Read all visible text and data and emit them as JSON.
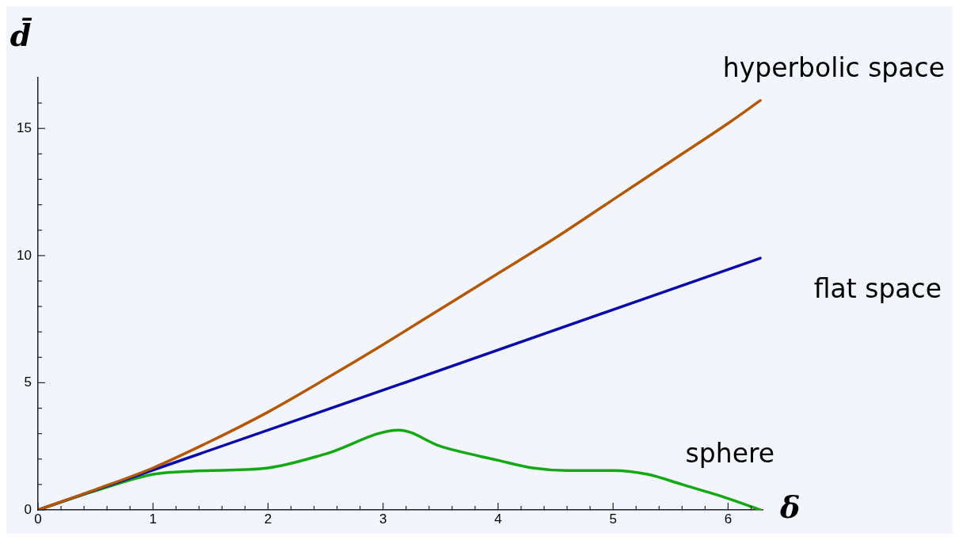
{
  "chart_data": {
    "type": "line",
    "xlabel": "δ",
    "ylabel": "d̄",
    "xlim": [
      0,
      6.3
    ],
    "ylim": [
      0,
      17
    ],
    "xticks": [
      0,
      {
        "value": 0.2,
        "label": null
      },
      {
        "value": 0.4,
        "label": null
      },
      {
        "value": 0.6,
        "label": null
      },
      {
        "value": 0.8,
        "label": null
      },
      1,
      {
        "value": 1.2,
        "label": null
      },
      {
        "value": 1.4,
        "label": null
      },
      {
        "value": 1.6,
        "label": null
      },
      {
        "value": 1.8,
        "label": null
      },
      2,
      {
        "value": 2.2,
        "label": null
      },
      {
        "value": 2.4,
        "label": null
      },
      {
        "value": 2.6,
        "label": null
      },
      {
        "value": 2.8,
        "label": null
      },
      3,
      {
        "value": 3.2,
        "label": null
      },
      {
        "value": 3.4,
        "label": null
      },
      {
        "value": 3.6,
        "label": null
      },
      {
        "value": 3.8,
        "label": null
      },
      4,
      {
        "value": 4.2,
        "label": null
      },
      {
        "value": 4.4,
        "label": null
      },
      {
        "value": 4.6,
        "label": null
      },
      {
        "value": 4.8,
        "label": null
      },
      5,
      {
        "value": 5.2,
        "label": null
      },
      {
        "value": 5.4,
        "label": null
      },
      {
        "value": 5.6,
        "label": null
      },
      {
        "value": 5.8,
        "label": null
      },
      6,
      {
        "value": 6.2,
        "label": null
      }
    ],
    "yticks": [
      0,
      {
        "value": 1,
        "label": null
      },
      {
        "value": 2,
        "label": null
      },
      {
        "value": 3,
        "label": null
      },
      {
        "value": 4,
        "label": null
      },
      5,
      {
        "value": 6,
        "label": null
      },
      {
        "value": 7,
        "label": null
      },
      {
        "value": 8,
        "label": null
      },
      {
        "value": 9,
        "label": null
      },
      10,
      {
        "value": 11,
        "label": null
      },
      {
        "value": 12,
        "label": null
      },
      {
        "value": 13,
        "label": null
      },
      {
        "value": 14,
        "label": null
      },
      15,
      {
        "value": 16,
        "label": null
      }
    ],
    "grid": false,
    "legend": false,
    "marker": "none",
    "line_style": "solid",
    "series": [
      {
        "name": "hyperbolic space",
        "color": "#b35806",
        "x": [
          0,
          0.5,
          1,
          1.5,
          2,
          2.5,
          3,
          3.5,
          4,
          4.5,
          5,
          5.5,
          6,
          6.28
        ],
        "values": [
          0,
          0.8,
          1.65,
          2.7,
          3.85,
          5.15,
          6.5,
          7.9,
          9.3,
          10.7,
          12.2,
          13.7,
          15.2,
          16.1
        ]
      },
      {
        "name": "flat space",
        "color": "#0a0aa8",
        "x": [
          0,
          3.14,
          6.28
        ],
        "values": [
          0,
          4.93,
          9.9
        ]
      },
      {
        "name": "sphere",
        "color": "#14a814",
        "x": [
          0,
          0.5,
          1,
          1.25,
          1.5,
          2,
          2.5,
          3.14,
          3.5,
          4,
          4.3,
          4.6,
          5,
          5.3,
          5.6,
          6,
          6.28
        ],
        "values": [
          0,
          0.75,
          1.4,
          1.5,
          1.55,
          1.65,
          2.2,
          3.14,
          2.5,
          1.95,
          1.65,
          1.55,
          1.55,
          1.4,
          1.0,
          0.45,
          0
        ]
      }
    ]
  }
}
